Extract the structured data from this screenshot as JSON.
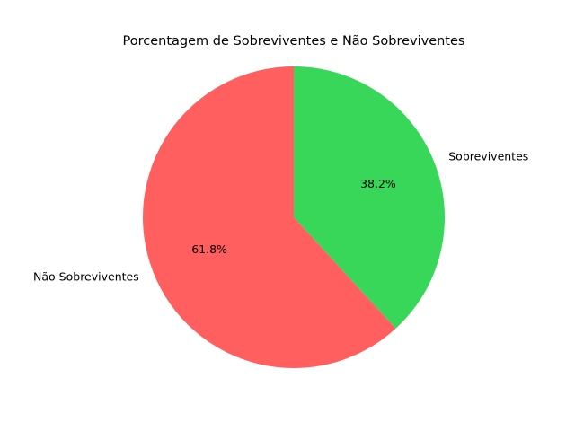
{
  "chart_data": {
    "type": "pie",
    "title": "Porcentagem de Sobreviventes e Não Sobreviventes",
    "slices": [
      {
        "label": "Sobreviventes",
        "value": 38.2,
        "pct_label": "38.2%",
        "color": "#38d659"
      },
      {
        "label": "Não Sobreviventes",
        "value": 61.8,
        "pct_label": "61.8%",
        "color": "#ff5f5f"
      }
    ],
    "start_angle_deg": 90,
    "direction": "clockwise"
  }
}
